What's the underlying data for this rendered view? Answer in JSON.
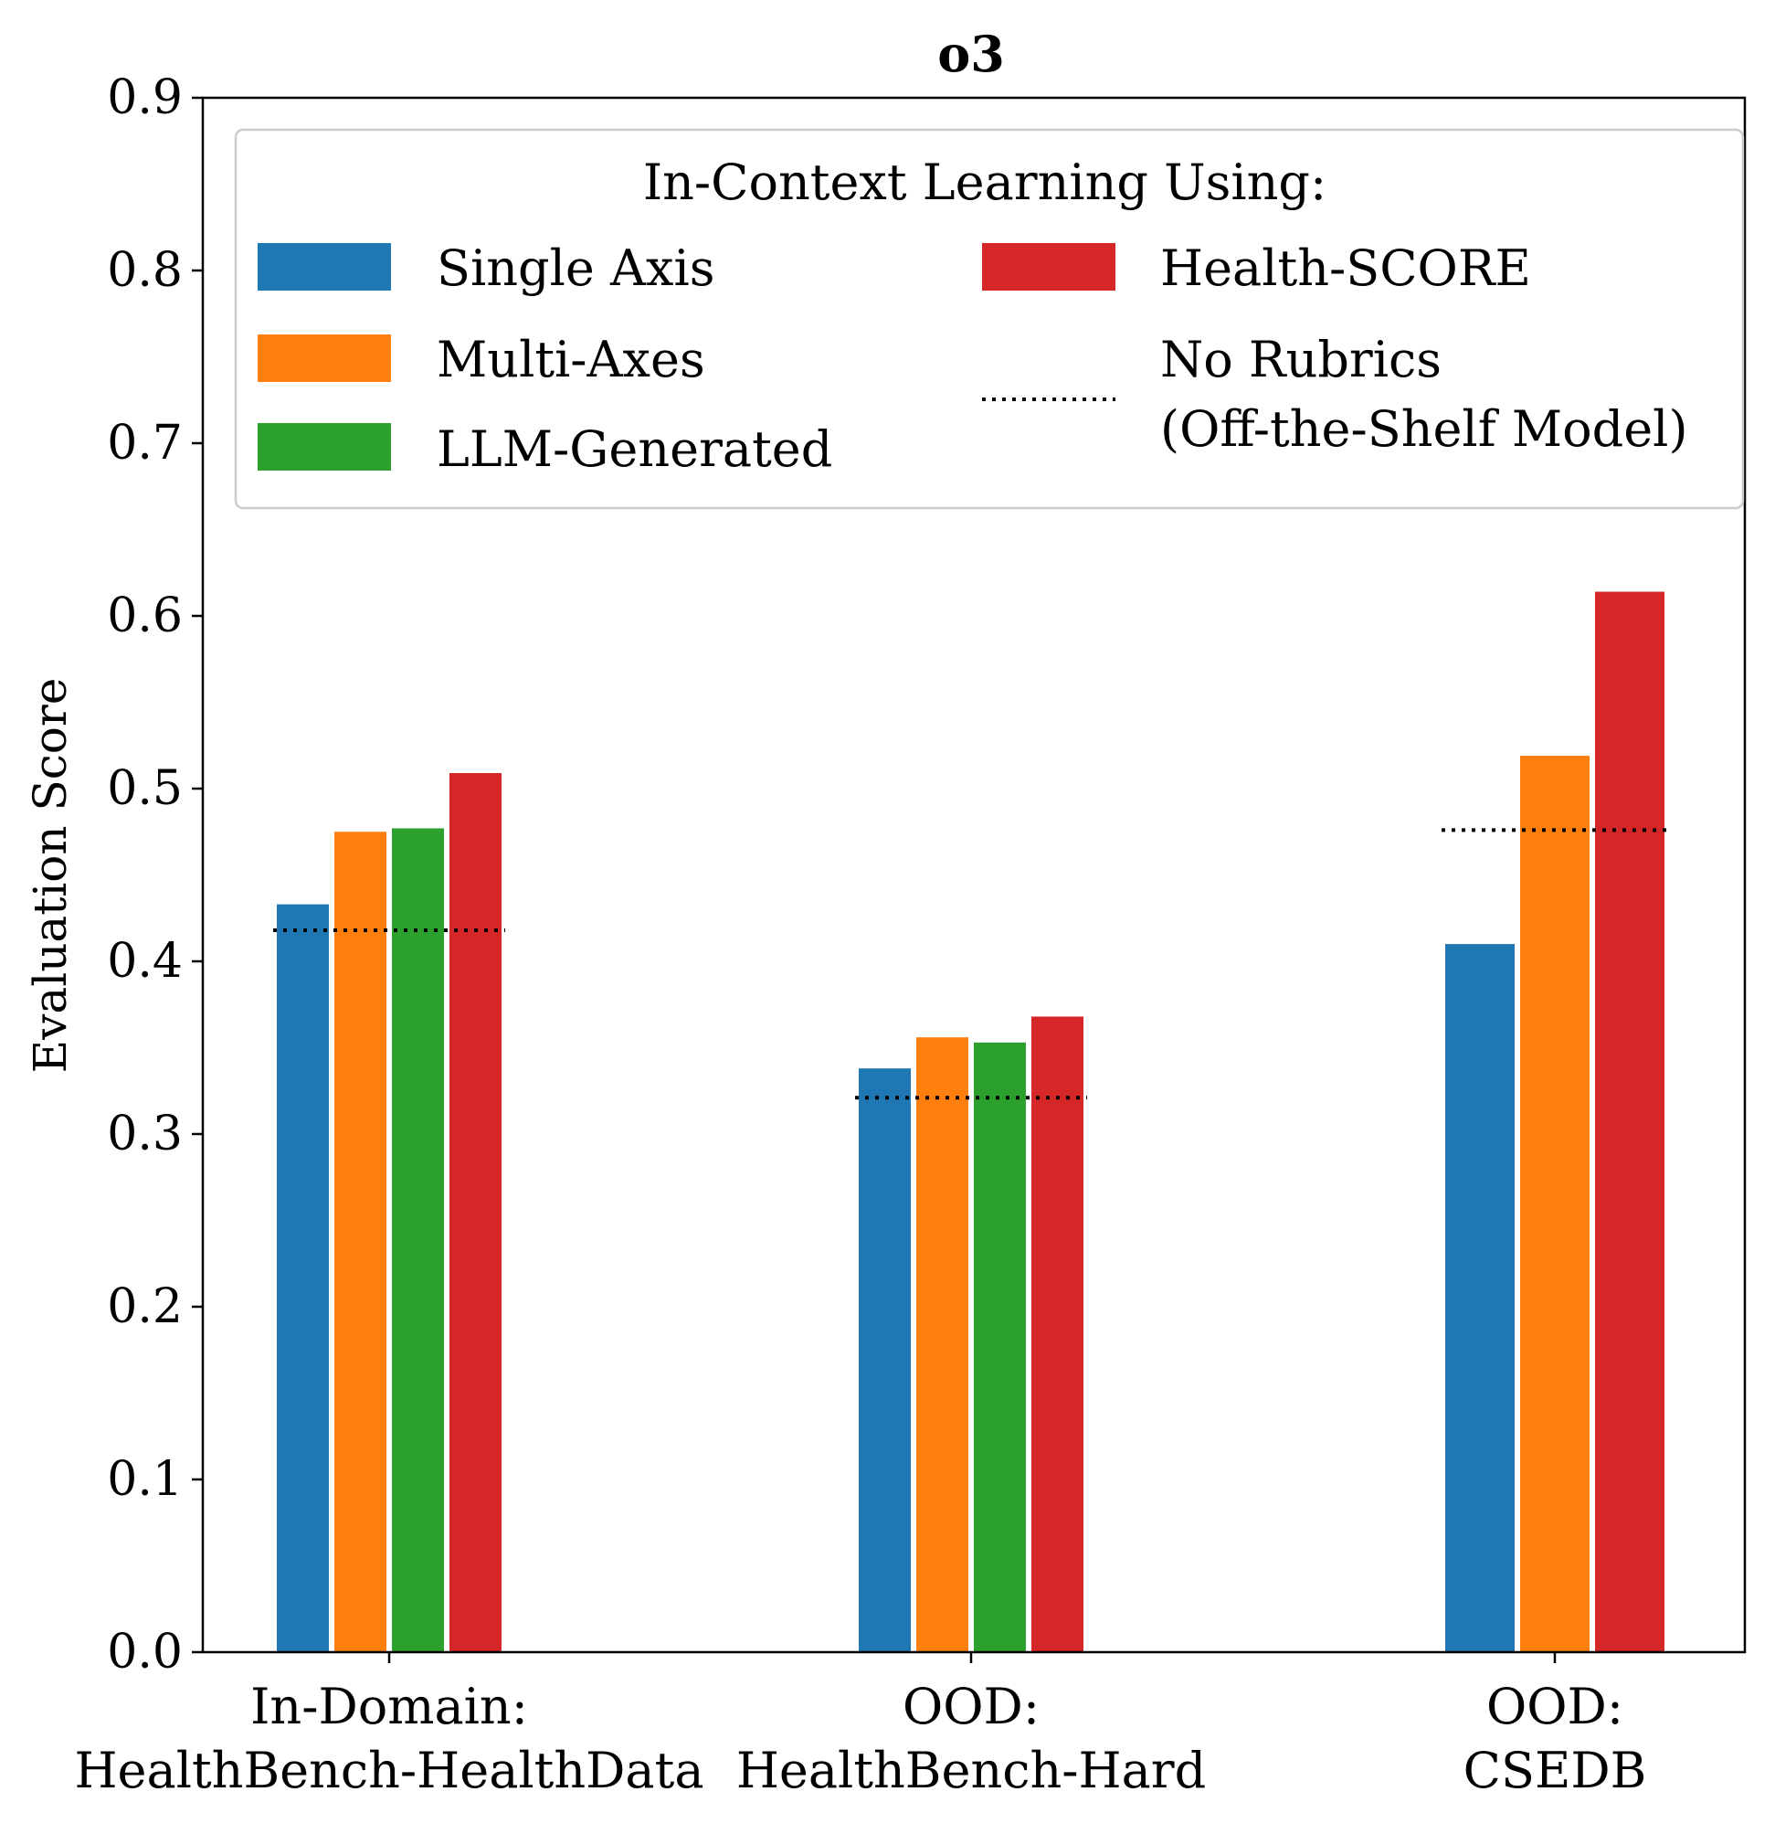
{
  "chart_data": {
    "type": "bar",
    "title": "o3",
    "ylabel": "Evaluation Score",
    "xlabel": "",
    "ylim": [
      0,
      0.9
    ],
    "yticks": [
      "0.0",
      "0.1",
      "0.2",
      "0.3",
      "0.4",
      "0.5",
      "0.6",
      "0.7",
      "0.8",
      "0.9"
    ],
    "groups": [
      {
        "label_line1": "In-Domain:",
        "label_line2": "HealthBench-HealthData"
      },
      {
        "label_line1": "OOD:",
        "label_line2": "HealthBench-Hard"
      },
      {
        "label_line1": "OOD:",
        "label_line2": "CSEDB"
      }
    ],
    "series": [
      {
        "name": "Single Axis",
        "color": "#1f77b4",
        "values": [
          0.433,
          0.338,
          0.41
        ]
      },
      {
        "name": "Multi-Axes",
        "color": "#ff7f0e",
        "values": [
          0.475,
          0.356,
          0.519
        ]
      },
      {
        "name": "LLM-Generated",
        "color": "#2ca02c",
        "values": [
          0.477,
          0.353,
          null
        ]
      },
      {
        "name": "Health-SCORE",
        "color": "#d62728",
        "values": [
          0.509,
          0.368,
          0.614
        ]
      }
    ],
    "baseline": {
      "name_line1": "No Rubrics",
      "name_line2": "(Off-the-Shelf Model)",
      "values": [
        0.418,
        0.321,
        0.476
      ]
    },
    "legend": {
      "title": "In-Context Learning Using:",
      "position": "top"
    }
  }
}
